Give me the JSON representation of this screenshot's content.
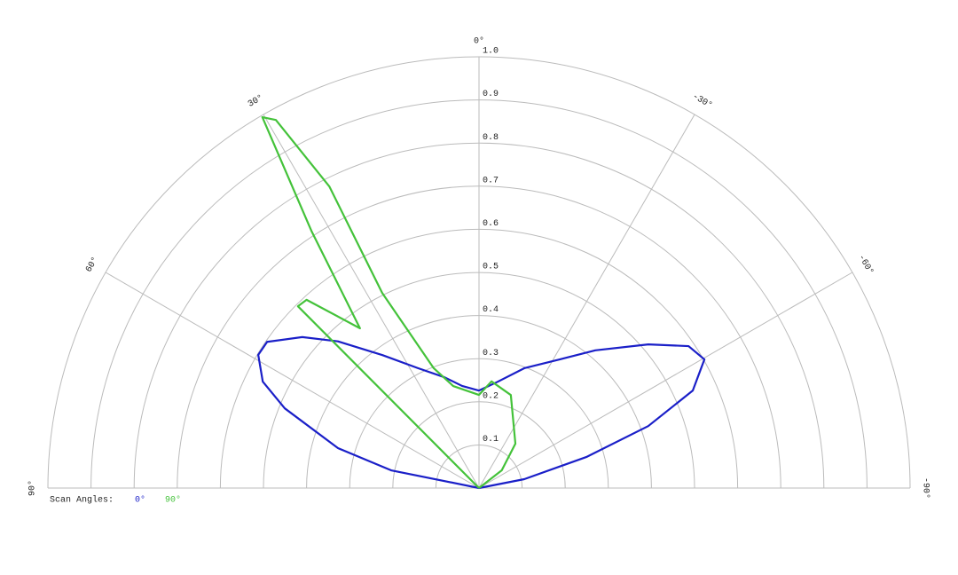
{
  "chart_data": {
    "type": "polar",
    "rlim": [
      0,
      1
    ],
    "rticks": [
      0.1,
      0.2,
      0.3,
      0.4,
      0.5,
      0.6,
      0.7,
      0.8,
      0.9,
      {
        "value": 1,
        "label": "1.0"
      }
    ],
    "thetalim": [
      90,
      -90
    ],
    "thetaticks": [
      {
        "value": 90,
        "label": "90°"
      },
      {
        "value": 60,
        "label": "60°"
      },
      {
        "value": 30,
        "label": "30°"
      },
      {
        "value": 0,
        "label": "0°"
      },
      {
        "value": -30,
        "label": "-30°"
      },
      {
        "value": -60,
        "label": "-60°"
      },
      {
        "value": -90,
        "label": "-90°"
      }
    ],
    "grid": true,
    "legend_title": "Scan Angles:",
    "series": [
      {
        "name": "0°",
        "color": "#1a1fc8",
        "x": [
          80,
          78.6,
          74.2,
          67.7,
          63.8,
          58.9,
          55.4,
          49.5,
          43.9,
          36,
          27,
          17.3,
          9.4,
          0,
          -9.9,
          -20.7,
          -32.1,
          -40.2,
          -49.7,
          -55.9,
          -60.3,
          -65.5,
          -69.9,
          -73.9,
          -78.9,
          -80
        ],
        "values": [
          0,
          0.208,
          0.34,
          0.487,
          0.559,
          0.598,
          0.597,
          0.539,
          0.472,
          0.381,
          0.312,
          0.269,
          0.24,
          0.226,
          0.25,
          0.297,
          0.352,
          0.418,
          0.515,
          0.587,
          0.602,
          0.545,
          0.418,
          0.259,
          0.107,
          0
        ]
      },
      {
        "name": "90°",
        "color": "#44c23a",
        "x": [
          45,
          44.9,
          42.5,
          36.7,
          33.1,
          30.3,
          28.9,
          26.4,
          26.4,
          20.7,
          14.2,
          0,
          -6.7,
          -18.9,
          -39.4,
          -52,
          -80
        ],
        "values": [
          0,
          0.595,
          0.592,
          0.462,
          0.712,
          0.996,
          0.975,
          0.781,
          0.505,
          0.297,
          0.244,
          0.216,
          0.249,
          0.228,
          0.133,
          0.067,
          0
        ]
      }
    ]
  }
}
